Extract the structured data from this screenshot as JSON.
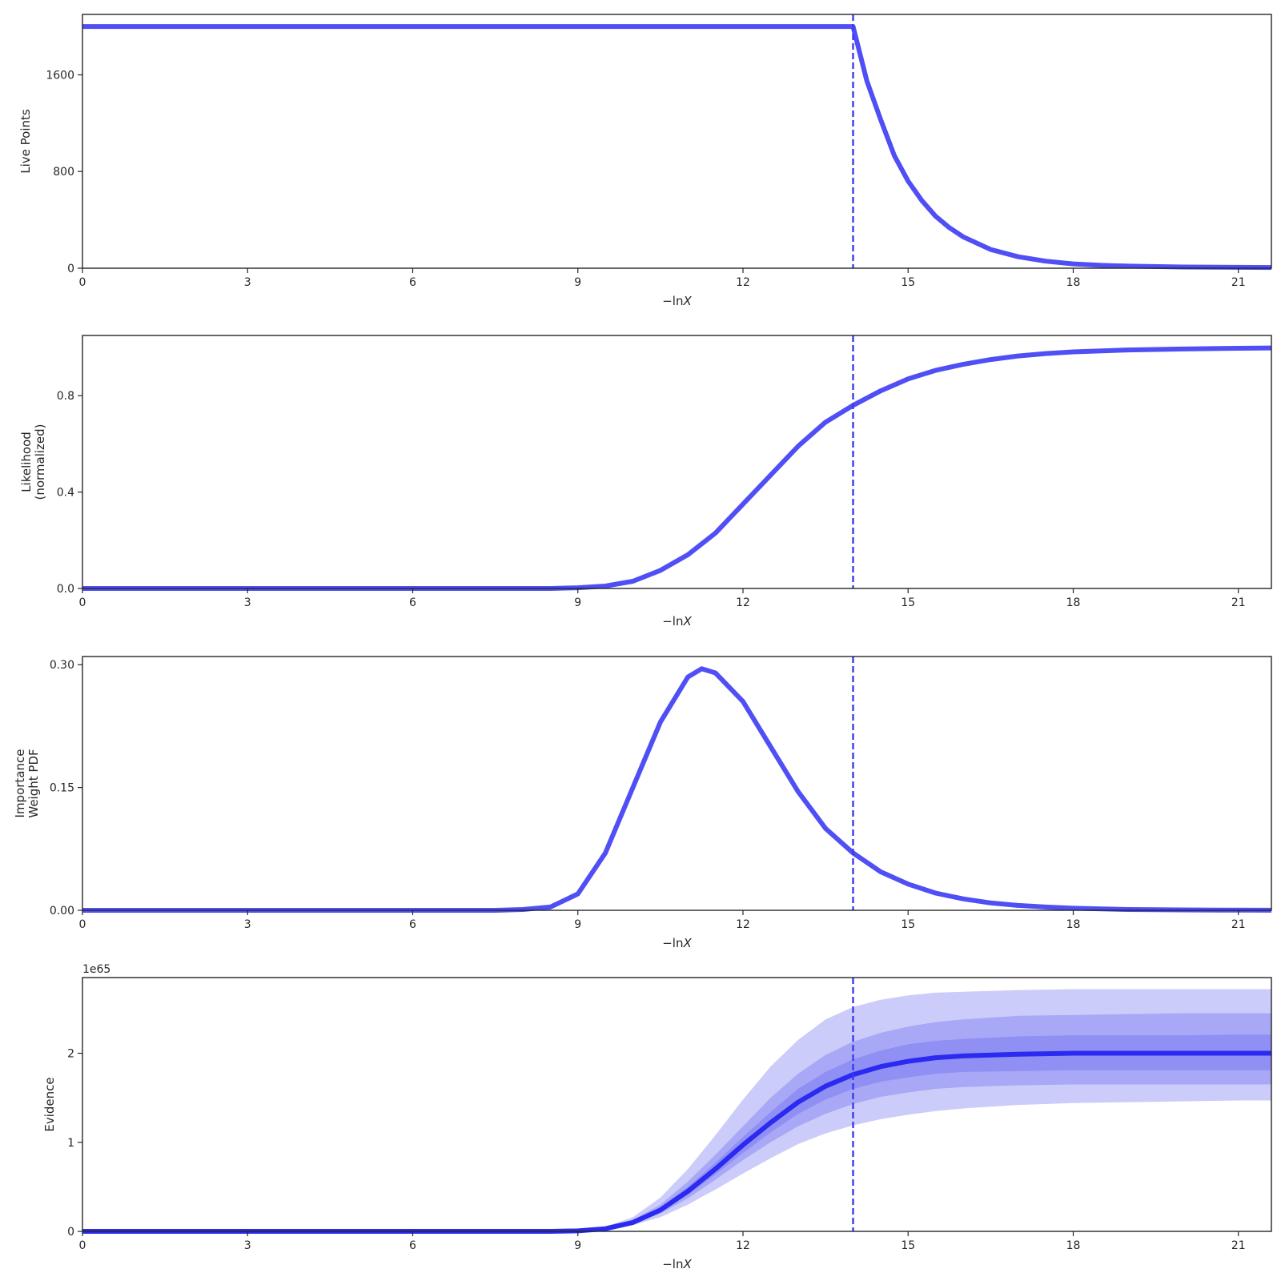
{
  "chart_data": [
    {
      "type": "line",
      "ylabel": [
        "Live Points"
      ],
      "xlabel": "−ln",
      "xlabel_var": "X",
      "xlim": [
        0,
        21.6
      ],
      "ylim": [
        0,
        2100
      ],
      "xticks": [
        0,
        3,
        6,
        9,
        12,
        15,
        18,
        21
      ],
      "xtick_labels": [
        "0",
        "3",
        "6",
        "9",
        "12",
        "15",
        "18",
        "21"
      ],
      "yticks": [
        0,
        800,
        1600
      ],
      "ytick_labels": [
        "0",
        "800",
        "1600"
      ],
      "vline_x": 14.0,
      "series": [
        {
          "color": "#4f4ff5",
          "x": [
            0,
            14.0,
            14.25,
            14.5,
            14.75,
            15,
            15.25,
            15.5,
            15.75,
            16,
            16.5,
            17,
            17.5,
            18,
            18.5,
            19,
            20,
            21,
            21.6
          ],
          "y": [
            2000,
            2000,
            1550,
            1230,
            930,
            720,
            560,
            430,
            335,
            260,
            155,
            95,
            58,
            36,
            24,
            17,
            10,
            7,
            6
          ]
        }
      ]
    },
    {
      "type": "line",
      "ylabel": [
        "Likelihood",
        "(normalized)"
      ],
      "xlabel": "−ln",
      "xlabel_var": "X",
      "xlim": [
        0,
        21.6
      ],
      "ylim": [
        0,
        1.05
      ],
      "xticks": [
        0,
        3,
        6,
        9,
        12,
        15,
        18,
        21
      ],
      "xtick_labels": [
        "0",
        "3",
        "6",
        "9",
        "12",
        "15",
        "18",
        "21"
      ],
      "yticks": [
        0.0,
        0.4,
        0.8
      ],
      "ytick_labels": [
        "0.0",
        "0.4",
        "0.8"
      ],
      "vline_x": 14.0,
      "series": [
        {
          "color": "#4f4ff5",
          "x": [
            0,
            8.5,
            9,
            9.5,
            10,
            10.5,
            11,
            11.5,
            12,
            12.5,
            13,
            13.5,
            14,
            14.5,
            15,
            15.5,
            16,
            16.5,
            17,
            17.5,
            18,
            19,
            20,
            21,
            21.6
          ],
          "y": [
            0,
            0,
            0.003,
            0.01,
            0.03,
            0.075,
            0.14,
            0.23,
            0.35,
            0.47,
            0.59,
            0.69,
            0.76,
            0.82,
            0.87,
            0.905,
            0.93,
            0.95,
            0.965,
            0.975,
            0.982,
            0.99,
            0.994,
            0.997,
            0.998
          ]
        }
      ]
    },
    {
      "type": "line",
      "ylabel": [
        "Importance",
        "Weight PDF"
      ],
      "xlabel": "−ln",
      "xlabel_var": "X",
      "xlim": [
        0,
        21.6
      ],
      "ylim": [
        0,
        0.31
      ],
      "xticks": [
        0,
        3,
        6,
        9,
        12,
        15,
        18,
        21
      ],
      "xtick_labels": [
        "0",
        "3",
        "6",
        "9",
        "12",
        "15",
        "18",
        "21"
      ],
      "yticks": [
        0.0,
        0.15,
        0.3
      ],
      "ytick_labels": [
        "0.00",
        "0.15",
        "0.30"
      ],
      "vline_x": 14.0,
      "series": [
        {
          "color": "#4f4ff5",
          "x": [
            0,
            7.5,
            8,
            8.5,
            9,
            9.5,
            10,
            10.5,
            11,
            11.25,
            11.5,
            12,
            12.5,
            13,
            13.5,
            14,
            14.5,
            15,
            15.5,
            16,
            16.5,
            17,
            17.5,
            18,
            19,
            20,
            21,
            21.6
          ],
          "y": [
            0,
            0,
            0.001,
            0.004,
            0.02,
            0.07,
            0.15,
            0.23,
            0.285,
            0.295,
            0.29,
            0.255,
            0.2,
            0.145,
            0.1,
            0.07,
            0.047,
            0.032,
            0.021,
            0.014,
            0.009,
            0.006,
            0.004,
            0.0025,
            0.001,
            0.0005,
            0.0002,
            0.0001
          ]
        }
      ]
    },
    {
      "type": "line",
      "ylabel": [
        "Evidence"
      ],
      "xlabel": "−ln",
      "xlabel_var": "X",
      "offset_label": "1e65",
      "xlim": [
        0,
        21.6
      ],
      "ylim": [
        0,
        2.85
      ],
      "xticks": [
        0,
        3,
        6,
        9,
        12,
        15,
        18,
        21
      ],
      "xtick_labels": [
        "0",
        "3",
        "6",
        "9",
        "12",
        "15",
        "18",
        "21"
      ],
      "yticks": [
        0,
        1,
        2
      ],
      "ytick_labels": [
        "0",
        "1",
        "2"
      ],
      "vline_x": 14.0,
      "x": [
        0,
        8.5,
        9,
        9.5,
        10,
        10.5,
        11,
        11.5,
        12,
        12.5,
        13,
        13.5,
        14,
        14.5,
        15,
        15.5,
        16,
        17,
        18,
        19,
        20,
        21,
        21.6
      ],
      "series": [
        {
          "name_hidden": "median",
          "color": "#2a2af0",
          "y": [
            0,
            0,
            0.005,
            0.03,
            0.1,
            0.24,
            0.45,
            0.7,
            0.97,
            1.22,
            1.45,
            1.63,
            1.76,
            1.85,
            1.91,
            1.95,
            1.97,
            1.99,
            2.0,
            2.0,
            2.0,
            2.0,
            2.0
          ]
        }
      ],
      "bands": [
        {
          "color": "#5555ee",
          "opacity": 0.3,
          "lower": [
            0,
            0,
            0.004,
            0.02,
            0.07,
            0.16,
            0.3,
            0.47,
            0.65,
            0.82,
            0.98,
            1.1,
            1.19,
            1.26,
            1.31,
            1.35,
            1.38,
            1.42,
            1.44,
            1.45,
            1.46,
            1.47,
            1.47
          ],
          "upper": [
            0,
            0,
            0.008,
            0.05,
            0.16,
            0.38,
            0.7,
            1.08,
            1.48,
            1.85,
            2.15,
            2.38,
            2.52,
            2.6,
            2.65,
            2.68,
            2.69,
            2.71,
            2.72,
            2.72,
            2.72,
            2.72,
            2.72
          ]
        },
        {
          "color": "#5555ee",
          "opacity": 0.3,
          "lower": [
            0,
            0,
            0.004,
            0.025,
            0.085,
            0.2,
            0.37,
            0.58,
            0.8,
            1.0,
            1.18,
            1.32,
            1.43,
            1.51,
            1.56,
            1.6,
            1.62,
            1.64,
            1.65,
            1.65,
            1.65,
            1.65,
            1.65
          ],
          "upper": [
            0,
            0,
            0.007,
            0.04,
            0.13,
            0.3,
            0.56,
            0.86,
            1.18,
            1.5,
            1.77,
            1.98,
            2.13,
            2.23,
            2.3,
            2.35,
            2.38,
            2.42,
            2.43,
            2.44,
            2.45,
            2.45,
            2.45
          ]
        },
        {
          "color": "#5555ee",
          "opacity": 0.3,
          "lower": [
            0,
            0,
            0.005,
            0.028,
            0.093,
            0.22,
            0.41,
            0.64,
            0.88,
            1.11,
            1.32,
            1.48,
            1.6,
            1.68,
            1.73,
            1.77,
            1.79,
            1.8,
            1.81,
            1.81,
            1.81,
            1.81,
            1.81
          ],
          "upper": [
            0,
            0,
            0.006,
            0.035,
            0.11,
            0.27,
            0.5,
            0.77,
            1.06,
            1.34,
            1.6,
            1.79,
            1.93,
            2.03,
            2.1,
            2.14,
            2.16,
            2.19,
            2.2,
            2.2,
            2.2,
            2.21,
            2.21
          ]
        }
      ]
    }
  ]
}
